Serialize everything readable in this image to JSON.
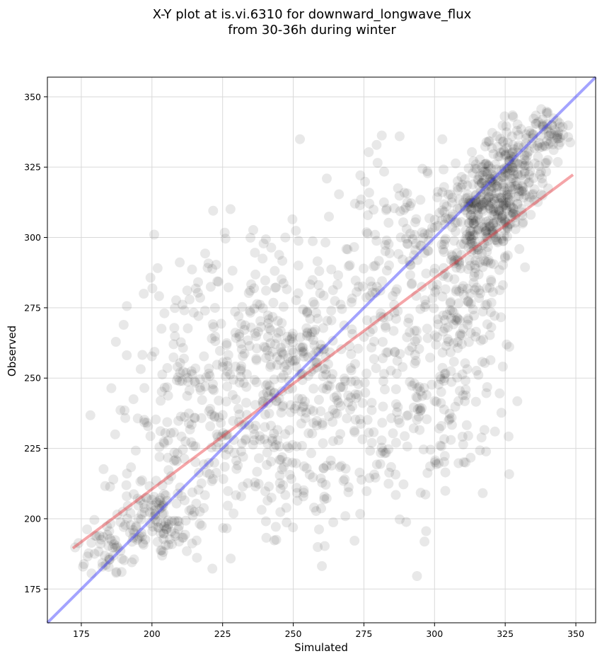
{
  "chart_data": {
    "type": "scatter",
    "title_line1": "X-Y plot at is.vi.6310 for downward_longwave_flux",
    "title_line2": "from 30-36h during winter",
    "xlabel": "Simulated",
    "ylabel": "Observed",
    "xlim": [
      163,
      357
    ],
    "ylim": [
      163,
      357
    ],
    "xticks": [
      175,
      200,
      225,
      250,
      275,
      300,
      325,
      350
    ],
    "yticks": [
      175,
      200,
      225,
      250,
      275,
      300,
      325,
      350
    ],
    "grid": true,
    "point_color": "#000000",
    "reference_line": {
      "name": "1:1",
      "color": "#3333ff",
      "x": [
        163,
        357
      ],
      "y": [
        163,
        357
      ]
    },
    "fit_line": {
      "color": "#e8383d",
      "x": [
        172,
        349
      ],
      "y": [
        189.5,
        322.3
      ]
    },
    "point_clusters": [
      {
        "cx": 200,
        "cy": 200,
        "sx": 8,
        "sy": 6,
        "n": 130
      },
      {
        "cx": 182,
        "cy": 188,
        "sx": 4,
        "sy": 5,
        "n": 40
      },
      {
        "cx": 205,
        "cy": 225,
        "sx": 12,
        "sy": 16,
        "n": 60
      },
      {
        "cx": 225,
        "cy": 255,
        "sx": 14,
        "sy": 20,
        "n": 160
      },
      {
        "cx": 240,
        "cy": 225,
        "sx": 16,
        "sy": 18,
        "n": 150
      },
      {
        "cx": 250,
        "cy": 270,
        "sx": 12,
        "sy": 16,
        "n": 100
      },
      {
        "cx": 260,
        "cy": 250,
        "sx": 14,
        "sy": 22,
        "n": 140
      },
      {
        "cx": 275,
        "cy": 235,
        "sx": 16,
        "sy": 24,
        "n": 120
      },
      {
        "cx": 285,
        "cy": 300,
        "sx": 12,
        "sy": 14,
        "n": 120
      },
      {
        "cx": 300,
        "cy": 260,
        "sx": 8,
        "sy": 20,
        "n": 110
      },
      {
        "cx": 312,
        "cy": 305,
        "sx": 7,
        "sy": 11,
        "n": 170
      },
      {
        "cx": 322,
        "cy": 315,
        "sx": 6,
        "sy": 10,
        "n": 200
      },
      {
        "cx": 330,
        "cy": 325,
        "sx": 6,
        "sy": 8,
        "n": 110
      },
      {
        "cx": 340,
        "cy": 337,
        "sx": 4,
        "sy": 4,
        "n": 60
      },
      {
        "cx": 315,
        "cy": 270,
        "sx": 6,
        "sy": 14,
        "n": 80
      },
      {
        "cx": 213,
        "cy": 290,
        "sx": 6,
        "sy": 10,
        "n": 12
      },
      {
        "cx": 300,
        "cy": 230,
        "sx": 12,
        "sy": 8,
        "n": 40
      }
    ]
  }
}
